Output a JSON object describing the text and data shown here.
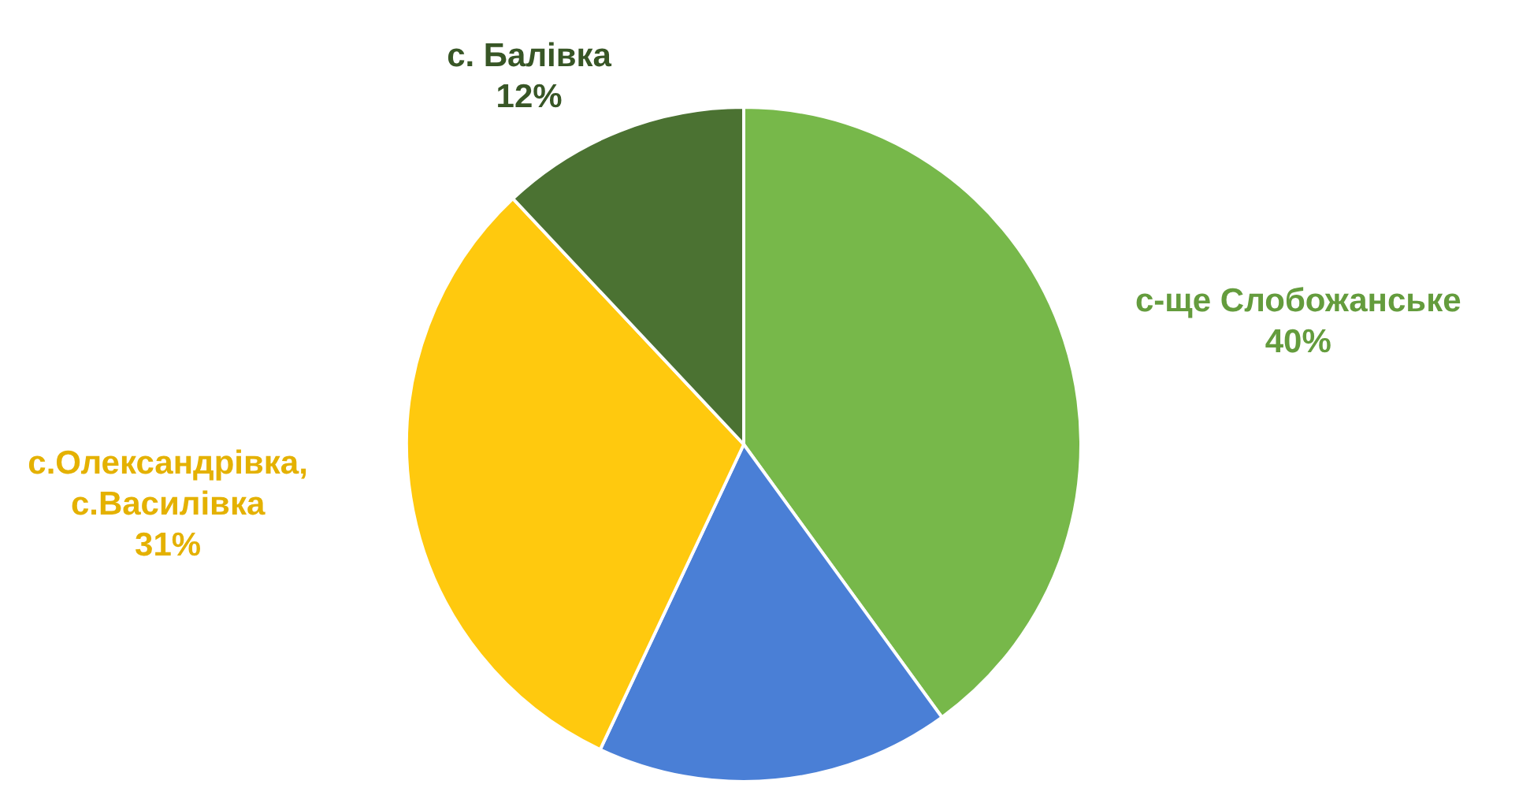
{
  "chart_data": {
    "type": "pie",
    "categories": [
      "с-ще Слобожанське",
      null,
      "с.Олександрівка, с.Василівка",
      "с. Балівка"
    ],
    "values": [
      40,
      17,
      31,
      12
    ],
    "colors": [
      "#77b84a",
      "#4a7fd6",
      "#ffc90e",
      "#4b7232"
    ],
    "value_labels": [
      "40%",
      null,
      "31%",
      "12%"
    ]
  }
}
